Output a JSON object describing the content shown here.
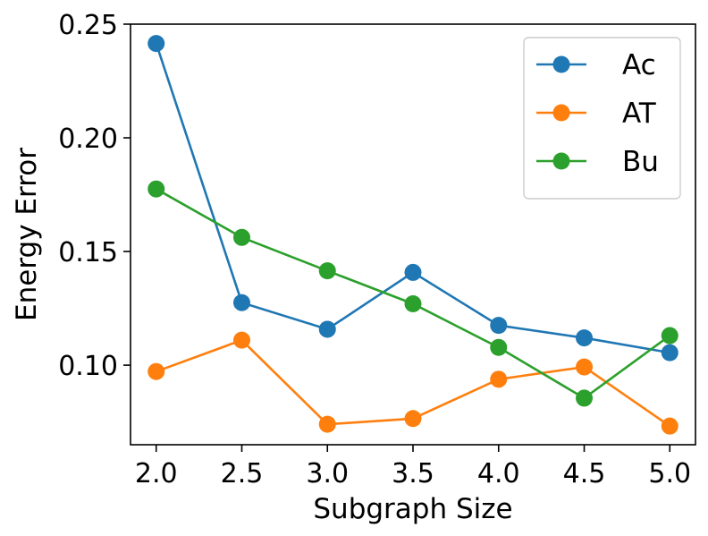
{
  "chart_data": {
    "type": "line",
    "title": "",
    "xlabel": "Subgraph Size",
    "ylabel": "Energy Error",
    "x": [
      2.0,
      2.5,
      3.0,
      3.5,
      4.0,
      4.5,
      5.0
    ],
    "xlim": [
      1.85,
      5.15
    ],
    "ylim": [
      0.065,
      0.25
    ],
    "x_ticks": [
      2.0,
      2.5,
      3.0,
      3.5,
      4.0,
      4.5,
      5.0
    ],
    "x_tick_labels": [
      "2.0",
      "2.5",
      "3.0",
      "3.5",
      "4.0",
      "4.5",
      "5.0"
    ],
    "y_ticks": [
      0.1,
      0.15,
      0.2,
      0.25
    ],
    "y_tick_labels": [
      "0.10",
      "0.15",
      "0.20",
      "0.25"
    ],
    "grid": false,
    "legend_position": "top-right",
    "series": [
      {
        "name": "Ac",
        "color": "#1f77b4",
        "values": [
          0.2415,
          0.1275,
          0.1158,
          0.1408,
          0.1175,
          0.112,
          0.1055
        ]
      },
      {
        "name": "AT",
        "color": "#ff7f0e",
        "values": [
          0.0972,
          0.111,
          0.074,
          0.0765,
          0.0938,
          0.0992,
          0.0732
        ]
      },
      {
        "name": "Bu",
        "color": "#2ca02c",
        "values": [
          0.1775,
          0.1562,
          0.1415,
          0.127,
          0.1078,
          0.0855,
          0.113
        ]
      }
    ]
  }
}
